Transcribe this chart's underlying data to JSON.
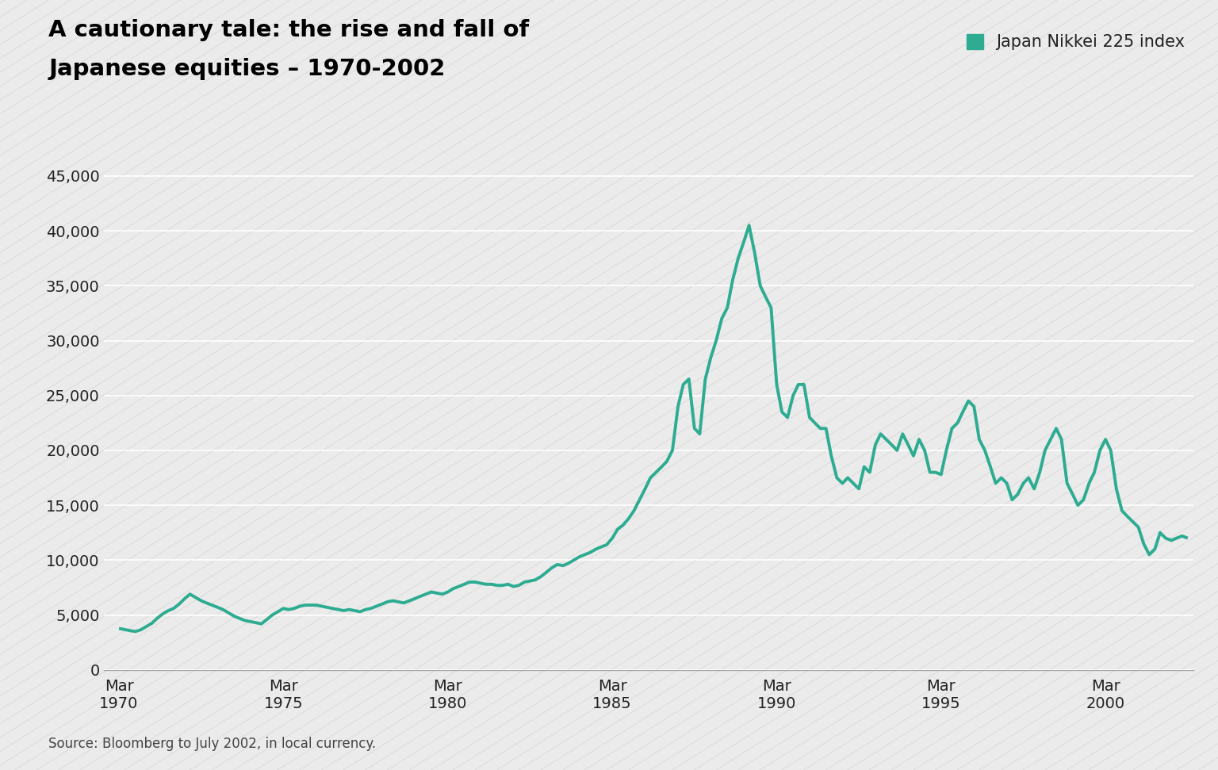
{
  "title_line1": "A cautionary tale: the rise and fall of",
  "title_line2": "Japanese equities – 1970-2002",
  "legend_label": "Japan Nikkei 225 index",
  "source_text": "Source: Bloomberg to July 2002, in local currency.",
  "line_color": "#2dac91",
  "background_color": "#ebebeb",
  "plot_bg_color": "#ebebeb",
  "title_color": "#000000",
  "grid_color": "#ffffff",
  "stripe_color": "#dddddd",
  "ytick_labels": [
    "0",
    "5,000",
    "10,000",
    "15,000",
    "20,000",
    "25,000",
    "30,000",
    "35,000",
    "40,000",
    "45,000"
  ],
  "ytick_values": [
    0,
    5000,
    10000,
    15000,
    20000,
    25000,
    30000,
    35000,
    40000,
    45000
  ],
  "xtick_positions": [
    1970.17,
    1975.17,
    1980.17,
    1985.17,
    1990.17,
    1995.17,
    2000.17
  ],
  "xtick_labels": [
    "Mar\n1970",
    "Mar\n1975",
    "Mar\n1980",
    "Mar\n1985",
    "Mar\n1990",
    "Mar\n1995",
    "Mar\n2000"
  ],
  "xlim": [
    1969.7,
    2002.85
  ],
  "ylim": [
    0,
    47000
  ],
  "data": {
    "dates_numeric": [
      1970.17,
      1970.33,
      1970.5,
      1970.67,
      1970.83,
      1971.0,
      1971.17,
      1971.33,
      1971.5,
      1971.67,
      1971.83,
      1972.0,
      1972.17,
      1972.33,
      1972.5,
      1972.67,
      1972.83,
      1973.0,
      1973.17,
      1973.33,
      1973.5,
      1973.67,
      1973.83,
      1974.0,
      1974.17,
      1974.33,
      1974.5,
      1974.67,
      1974.83,
      1975.0,
      1975.17,
      1975.33,
      1975.5,
      1975.67,
      1975.83,
      1976.0,
      1976.17,
      1976.33,
      1976.5,
      1976.67,
      1976.83,
      1977.0,
      1977.17,
      1977.33,
      1977.5,
      1977.67,
      1977.83,
      1978.0,
      1978.17,
      1978.33,
      1978.5,
      1978.67,
      1978.83,
      1979.0,
      1979.17,
      1979.33,
      1979.5,
      1979.67,
      1979.83,
      1980.0,
      1980.17,
      1980.33,
      1980.5,
      1980.67,
      1980.83,
      1981.0,
      1981.17,
      1981.33,
      1981.5,
      1981.67,
      1981.83,
      1982.0,
      1982.17,
      1982.33,
      1982.5,
      1982.67,
      1982.83,
      1983.0,
      1983.17,
      1983.33,
      1983.5,
      1983.67,
      1983.83,
      1984.0,
      1984.17,
      1984.33,
      1984.5,
      1984.67,
      1984.83,
      1985.0,
      1985.17,
      1985.33,
      1985.5,
      1985.67,
      1985.83,
      1986.0,
      1986.17,
      1986.33,
      1986.5,
      1986.67,
      1986.83,
      1987.0,
      1987.17,
      1987.33,
      1987.5,
      1987.67,
      1987.83,
      1988.0,
      1988.17,
      1988.33,
      1988.5,
      1988.67,
      1988.83,
      1989.0,
      1989.17,
      1989.33,
      1989.5,
      1989.67,
      1989.83,
      1990.0,
      1990.17,
      1990.33,
      1990.5,
      1990.67,
      1990.83,
      1991.0,
      1991.17,
      1991.33,
      1991.5,
      1991.67,
      1991.83,
      1992.0,
      1992.17,
      1992.33,
      1992.5,
      1992.67,
      1992.83,
      1993.0,
      1993.17,
      1993.33,
      1993.5,
      1993.67,
      1993.83,
      1994.0,
      1994.17,
      1994.33,
      1994.5,
      1994.67,
      1994.83,
      1995.0,
      1995.17,
      1995.33,
      1995.5,
      1995.67,
      1995.83,
      1996.0,
      1996.17,
      1996.33,
      1996.5,
      1996.67,
      1996.83,
      1997.0,
      1997.17,
      1997.33,
      1997.5,
      1997.67,
      1997.83,
      1998.0,
      1998.17,
      1998.33,
      1998.5,
      1998.67,
      1998.83,
      1999.0,
      1999.17,
      1999.33,
      1999.5,
      1999.67,
      1999.83,
      2000.0,
      2000.17,
      2000.33,
      2000.5,
      2000.67,
      2000.83,
      2001.0,
      2001.17,
      2001.33,
      2001.5,
      2001.67,
      2001.83,
      2002.0,
      2002.17,
      2002.33,
      2002.5,
      2002.67
    ],
    "values": [
      3780,
      3680,
      3580,
      3500,
      3650,
      3950,
      4250,
      4700,
      5100,
      5400,
      5600,
      6000,
      6500,
      6900,
      6600,
      6300,
      6100,
      5900,
      5700,
      5500,
      5200,
      4900,
      4700,
      4500,
      4400,
      4300,
      4200,
      4600,
      5000,
      5300,
      5600,
      5500,
      5600,
      5800,
      5900,
      5900,
      5900,
      5800,
      5700,
      5600,
      5500,
      5400,
      5500,
      5400,
      5300,
      5500,
      5600,
      5800,
      6000,
      6200,
      6300,
      6200,
      6100,
      6300,
      6500,
      6700,
      6900,
      7100,
      7000,
      6900,
      7100,
      7400,
      7600,
      7800,
      8000,
      8000,
      7900,
      7800,
      7800,
      7700,
      7700,
      7800,
      7600,
      7700,
      8000,
      8100,
      8200,
      8500,
      8900,
      9300,
      9600,
      9500,
      9700,
      10000,
      10300,
      10500,
      10700,
      11000,
      11200,
      11400,
      12000,
      12800,
      13200,
      13800,
      14500,
      15500,
      16500,
      17500,
      18000,
      18500,
      19000,
      20000,
      24000,
      26000,
      26500,
      22000,
      21500,
      26500,
      28500,
      30000,
      32000,
      33000,
      35500,
      37500,
      39000,
      40500,
      38000,
      35000,
      34000,
      33000,
      26000,
      23500,
      23000,
      25000,
      26000,
      26000,
      23000,
      22500,
      22000,
      22000,
      19500,
      17500,
      17000,
      17500,
      17000,
      16500,
      18500,
      18000,
      20500,
      21500,
      21000,
      20500,
      20000,
      21500,
      20500,
      19500,
      21000,
      20000,
      18000,
      18000,
      17800,
      20000,
      22000,
      22500,
      23500,
      24500,
      24000,
      21000,
      20000,
      18500,
      17000,
      17500,
      17000,
      15500,
      16000,
      17000,
      17500,
      16500,
      18000,
      20000,
      21000,
      22000,
      21000,
      17000,
      16000,
      15000,
      15500,
      17000,
      18000,
      20000,
      21000,
      20000,
      16500,
      14500,
      14000,
      13500,
      13000,
      11500,
      10500,
      11000,
      12500,
      12000,
      11800,
      12000,
      12200,
      12000
    ]
  }
}
